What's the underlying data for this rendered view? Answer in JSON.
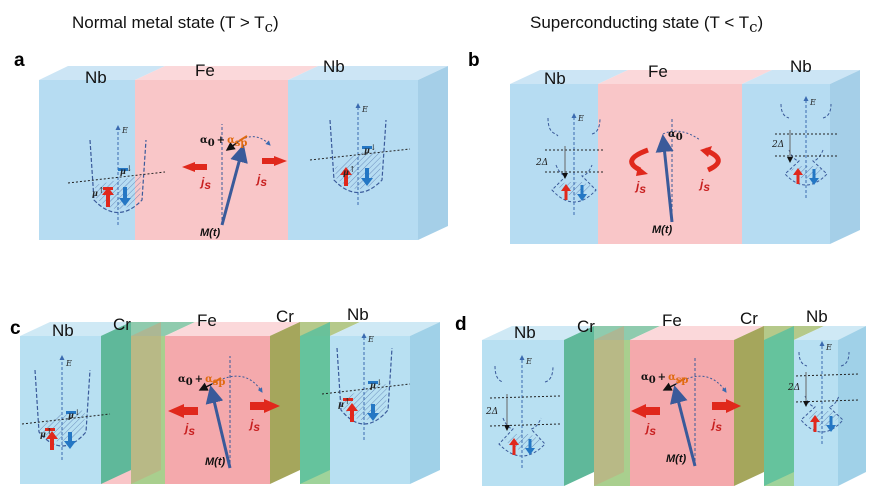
{
  "headers": {
    "left": "Normal metal state (T > T",
    "left_sub": "c",
    "right": "Superconducting state (T < T",
    "right_sub": "c"
  },
  "panels": [
    {
      "letter": "a",
      "layers": [
        "Nb",
        "Fe",
        "Nb"
      ]
    },
    {
      "letter": "b",
      "layers": [
        "Nb",
        "Fe",
        "Nb"
      ]
    },
    {
      "letter": "c",
      "layers": [
        "Nb",
        "Cr",
        "Fe",
        "Cr",
        "Nb"
      ]
    },
    {
      "letter": "d",
      "layers": [
        "Nb",
        "Cr",
        "Fe",
        "Cr",
        "Nb"
      ]
    }
  ],
  "labels": {
    "spin_current": "j",
    "spin_current_sub": "s",
    "magnetization": "M(t)",
    "alpha0": "α",
    "alpha0_sub": "0",
    "plus": "+",
    "alpha_sp": "α",
    "alpha_sp_sub": "sp",
    "energy": "E",
    "chem_pot": "μ",
    "chem_pot_sup": "↓",
    "chem_pot_up": "↑",
    "gap": "2Δ"
  },
  "colors": {
    "nb": "#b6dcf2",
    "fe": "#f9c6c8",
    "cr_dark": "#5fb89a",
    "cr_light": "#a9cf8e",
    "spin_up": "#e0281c",
    "spin_down": "#2477c4",
    "magnet": "#3a5a9a",
    "alpha_sp": "#e06a10"
  }
}
